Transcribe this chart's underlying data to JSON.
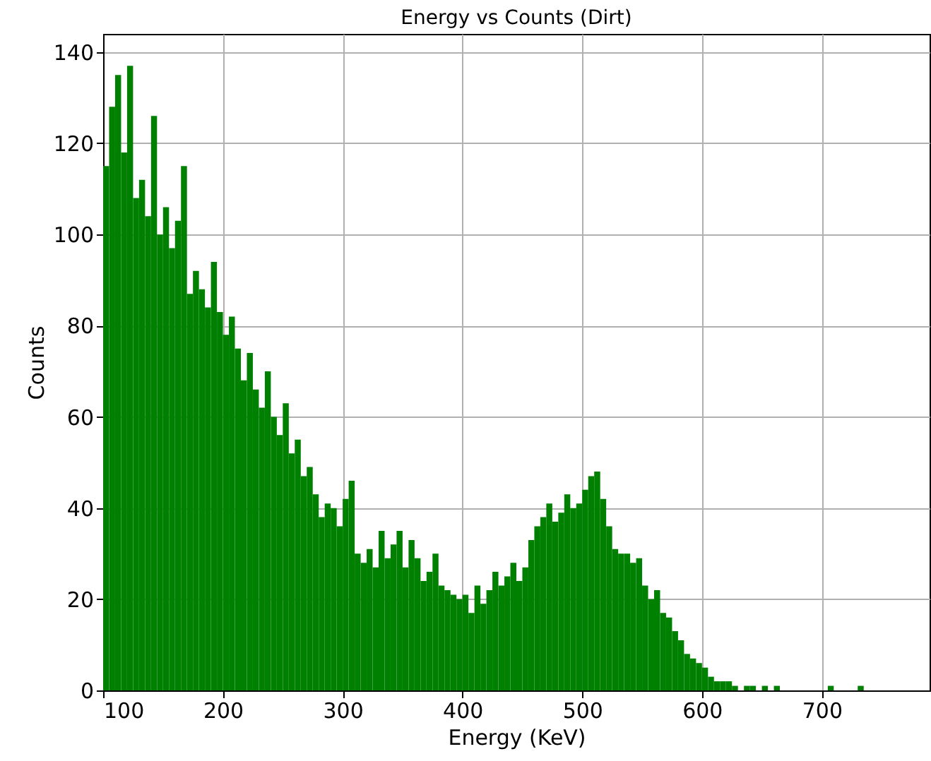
{
  "chart_data": {
    "type": "histogram",
    "title": "Energy vs Counts (Dirt)",
    "xlabel": "Energy (KeV)",
    "ylabel": "Counts",
    "color": "#008000",
    "bins": [
      100,
      105,
      110,
      115,
      120,
      125,
      130,
      135,
      140,
      145,
      150,
      155,
      160,
      165,
      170,
      175,
      180,
      185,
      190,
      195,
      200,
      205,
      210,
      215,
      220,
      225,
      230,
      235,
      240,
      245,
      250,
      255,
      260,
      265,
      270,
      275,
      280,
      285,
      290,
      295,
      300,
      305,
      310,
      315,
      320,
      325,
      330,
      335,
      340,
      345,
      350,
      355,
      360,
      365,
      370,
      375,
      380,
      385,
      390,
      395,
      400,
      405,
      410,
      415,
      420,
      425,
      430,
      435,
      440,
      445,
      450,
      455,
      460,
      465,
      470,
      475,
      480,
      485,
      490,
      495,
      500,
      505,
      510,
      515,
      520,
      525,
      530,
      535,
      540,
      545,
      550,
      555,
      560,
      565,
      570,
      575,
      580,
      585,
      590,
      595,
      600,
      605,
      610,
      615,
      620,
      625,
      630,
      635,
      640,
      645,
      650,
      655,
      660,
      665,
      670,
      675,
      680,
      685,
      690,
      695,
      700,
      705,
      710,
      715,
      720,
      725,
      730,
      735,
      740,
      745,
      750,
      755,
      760,
      765,
      770,
      775,
      780,
      785,
      790
    ],
    "values": [
      115,
      128,
      135,
      118,
      137,
      108,
      112,
      104,
      126,
      100,
      106,
      97,
      103,
      115,
      87,
      92,
      88,
      84,
      94,
      83,
      78,
      82,
      75,
      68,
      74,
      66,
      62,
      70,
      60,
      56,
      63,
      52,
      55,
      47,
      49,
      43,
      38,
      41,
      40,
      36,
      42,
      46,
      30,
      28,
      31,
      27,
      35,
      29,
      32,
      35,
      27,
      33,
      29,
      24,
      26,
      30,
      23,
      22,
      21,
      20,
      21,
      17,
      23,
      19,
      22,
      26,
      23,
      25,
      28,
      24,
      27,
      33,
      36,
      38,
      41,
      37,
      39,
      43,
      40,
      41,
      44,
      47,
      48,
      42,
      36,
      31,
      30,
      30,
      28,
      29,
      23,
      20,
      22,
      17,
      16,
      13,
      11,
      8,
      7,
      6,
      5,
      3,
      2,
      2,
      2,
      1,
      0,
      1,
      1,
      0,
      1,
      0,
      1,
      0,
      0,
      0,
      0,
      0,
      0,
      0,
      0,
      1,
      0,
      0,
      0,
      0,
      1,
      0,
      0,
      0,
      0,
      0,
      0,
      0,
      0,
      0,
      0,
      0
    ],
    "xlim": [
      100,
      790
    ],
    "xticks": [
      100,
      200,
      300,
      400,
      500,
      600,
      700
    ],
    "ylim": [
      0,
      144
    ],
    "yticks": [
      0,
      20,
      40,
      60,
      80,
      100,
      120,
      140
    ],
    "grid": true
  }
}
